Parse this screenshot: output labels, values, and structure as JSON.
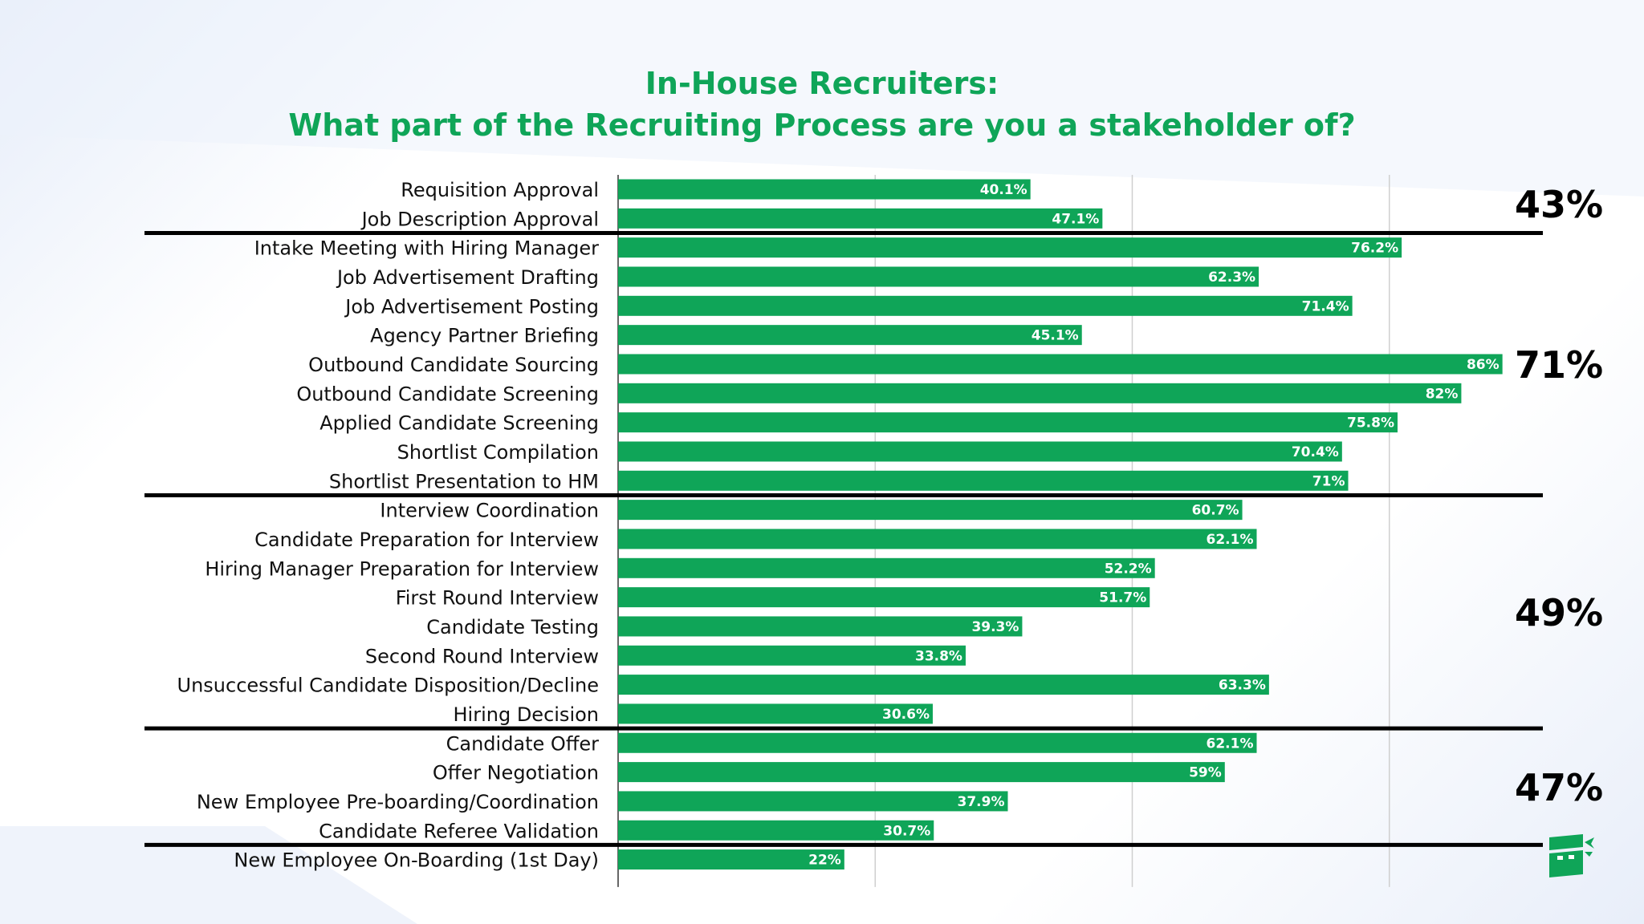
{
  "title_line1": "In-House Recruiters:",
  "title_line2": "What part of the Recruiting Process are you a stakeholder of?",
  "colors": {
    "bar": "#0fa558",
    "title": "#0fa558",
    "separator": "#000000",
    "grid": "#cfcfcf"
  },
  "chart_data": {
    "type": "bar",
    "orientation": "horizontal",
    "xlim": [
      0,
      100
    ],
    "grid": true,
    "categories": [
      "Requisition Approval",
      "Job Description Approval",
      "Intake Meeting with Hiring Manager",
      "Job Advertisement Drafting",
      "Job Advertisement Posting",
      "Agency Partner Briefing",
      "Outbound Candidate Sourcing",
      "Outbound Candidate Screening",
      "Applied Candidate Screening",
      "Shortlist Compilation",
      "Shortlist Presentation to HM",
      "Interview Coordination",
      "Candidate Preparation for Interview",
      "Hiring Manager Preparation for Interview",
      "First Round Interview",
      "Candidate Testing",
      "Second Round Interview",
      "Unsuccessful Candidate Disposition/Decline",
      "Hiring Decision",
      "Candidate Offer",
      "Offer Negotiation",
      "New Employee Pre-boarding/Coordination",
      "Candidate Referee Validation",
      "New Employee On-Boarding (1st Day)"
    ],
    "values": [
      40.1,
      47.1,
      76.2,
      62.3,
      71.4,
      45.1,
      86,
      82,
      75.8,
      70.4,
      71,
      60.7,
      62.1,
      52.2,
      51.7,
      39.3,
      33.8,
      63.3,
      30.6,
      62.1,
      59,
      37.9,
      30.7,
      22
    ],
    "value_labels": [
      "40.1%",
      "47.1%",
      "76.2%",
      "62.3%",
      "71.4%",
      "45.1%",
      "86%",
      "82%",
      "75.8%",
      "70.4%",
      "71%",
      "60.7%",
      "62.1%",
      "52.2%",
      "51.7%",
      "39.3%",
      "33.8%",
      "63.3%",
      "30.6%",
      "62.1%",
      "59%",
      "37.9%",
      "30.7%",
      "22%"
    ],
    "groups": [
      {
        "label": "43%",
        "start": 0,
        "end": 1
      },
      {
        "label": "71%",
        "start": 2,
        "end": 10
      },
      {
        "label": "49%",
        "start": 11,
        "end": 18
      },
      {
        "label": "47%",
        "start": 19,
        "end": 22
      },
      {
        "label": "",
        "start": 23,
        "end": 23
      }
    ]
  }
}
